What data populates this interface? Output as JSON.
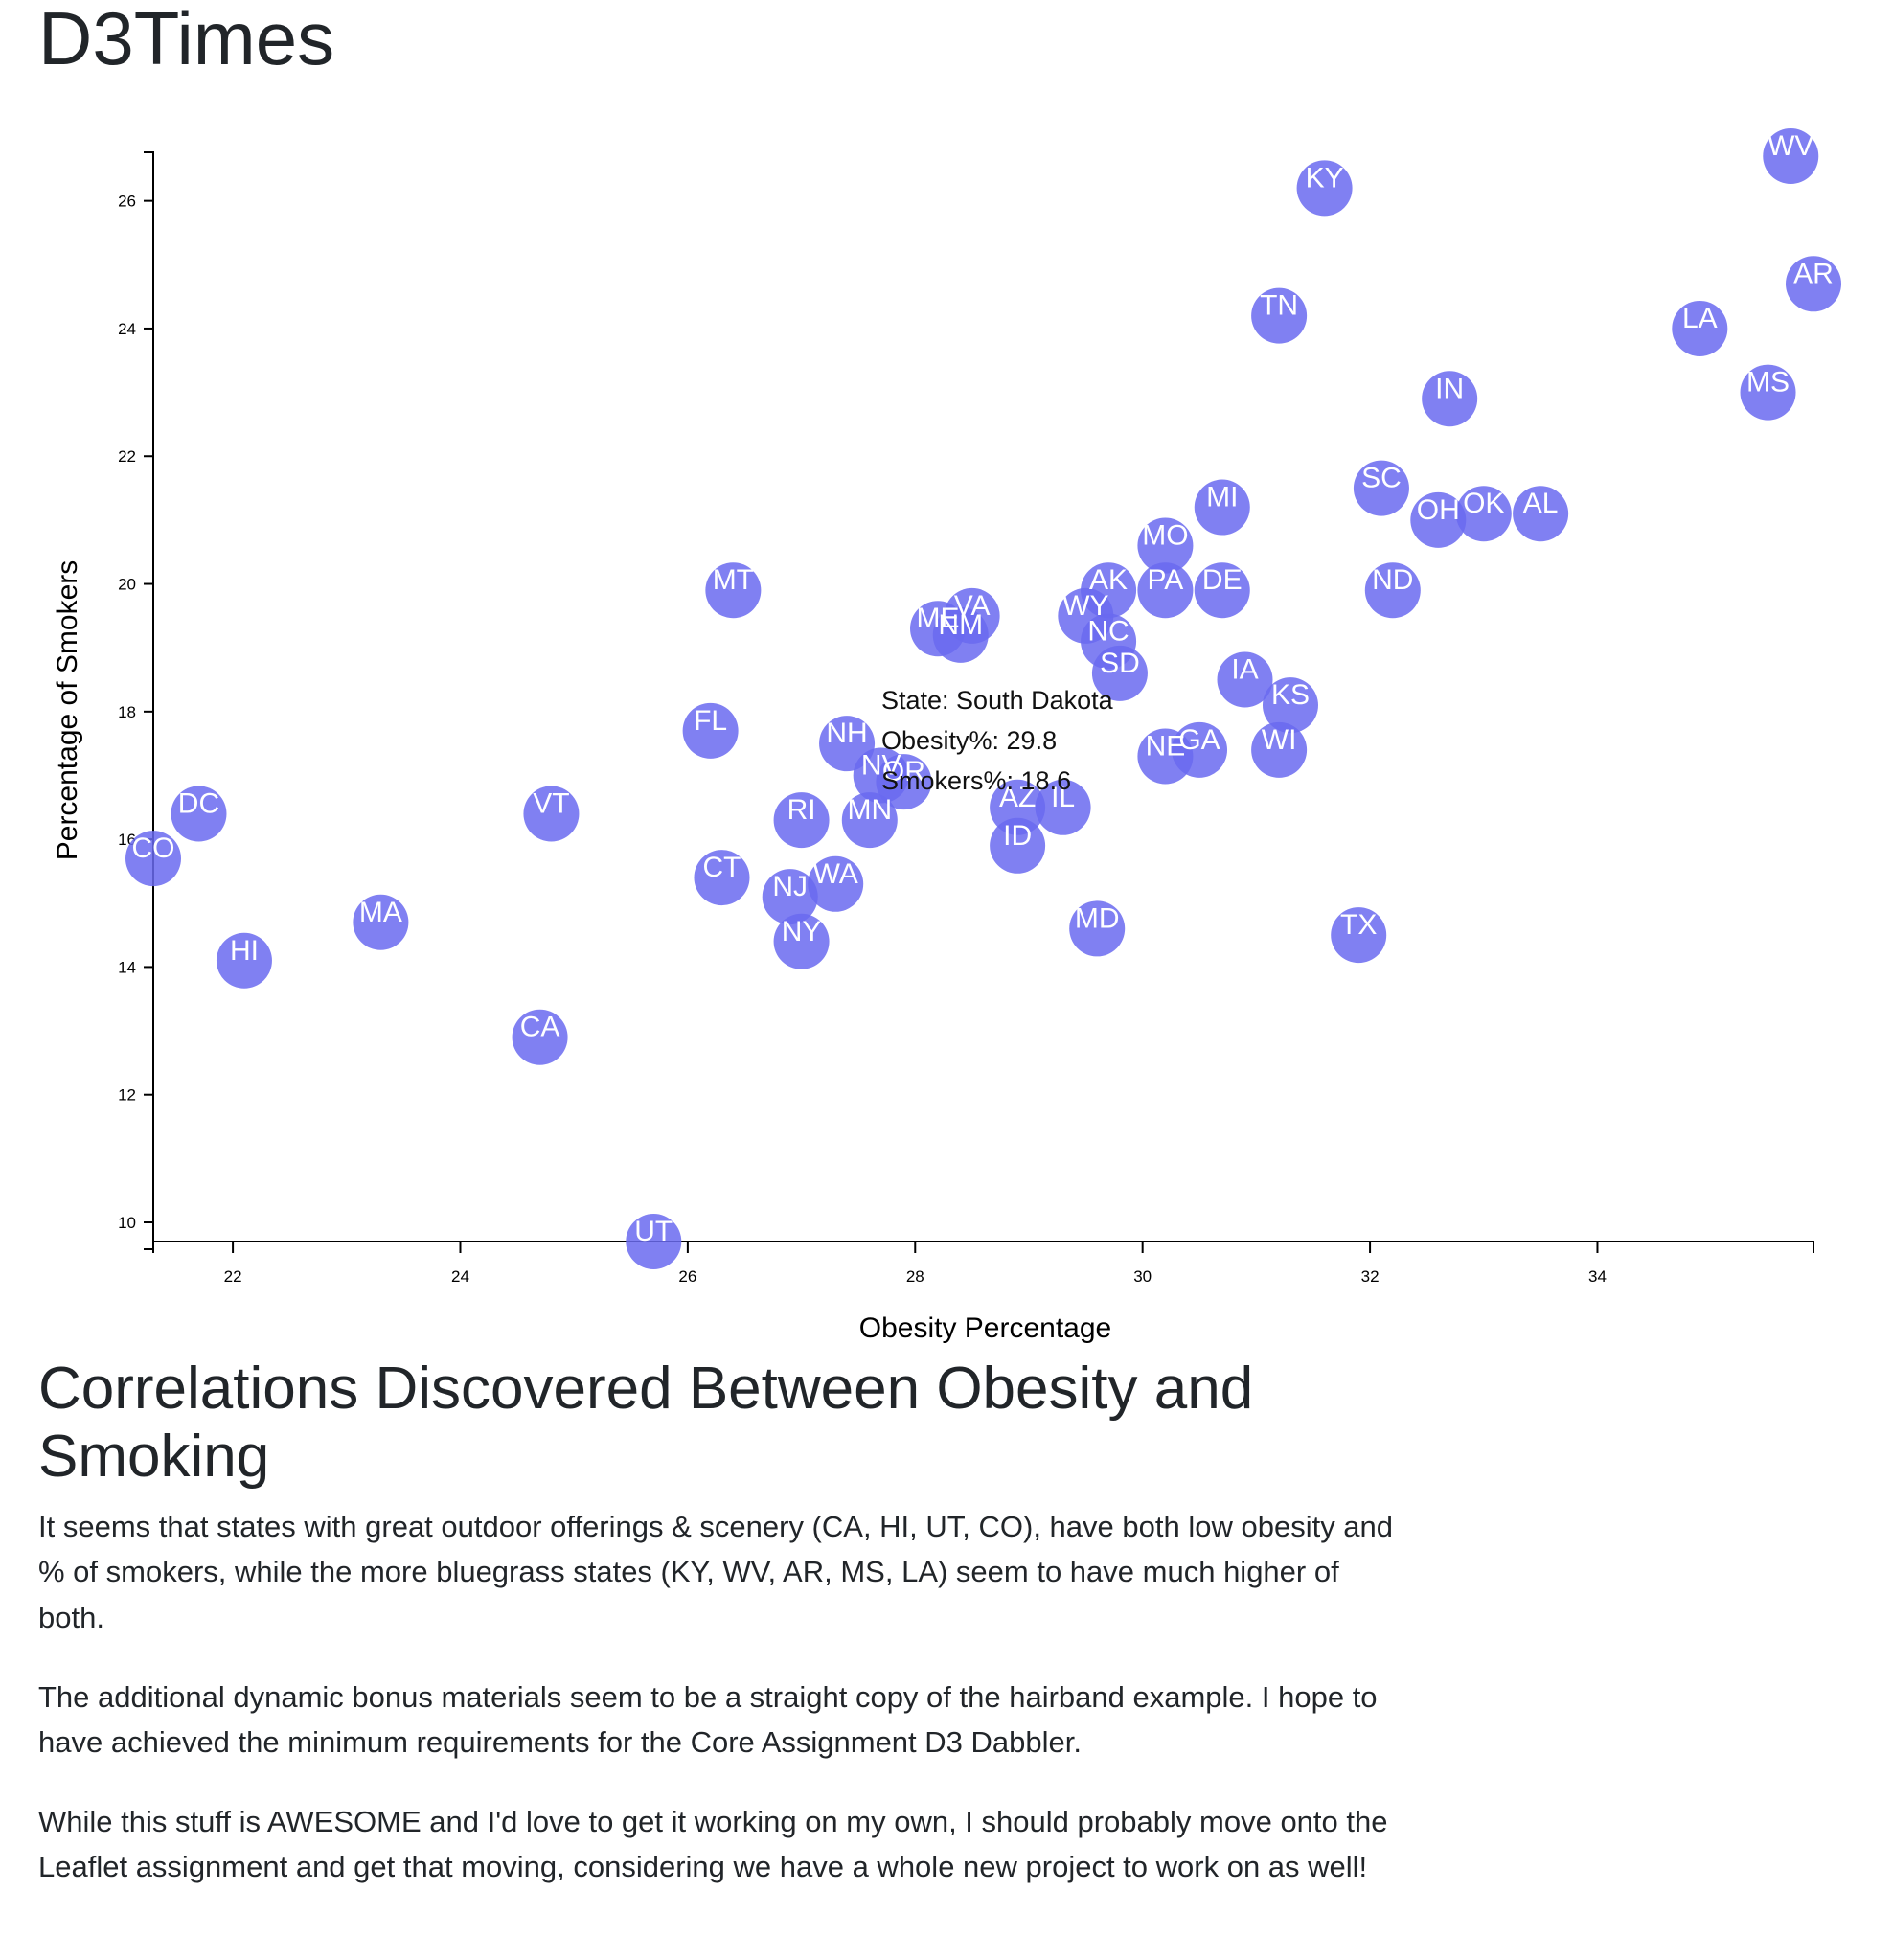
{
  "page": {
    "title": "D3Times"
  },
  "analysis": {
    "heading": "Correlations Discovered Between Obesity and Smoking",
    "paragraphs": [
      "It seems that states with great outdoor offerings & scenery (CA, HI, UT, CO), have both low obesity and % of smokers, while the more bluegrass states (KY, WV, AR, MS, LA) seem to have much higher of both.",
      "The additional dynamic bonus materials seem to be a straight copy of the hairband example. I hope to have achieved the minimum requirements for the Core Assignment D3 Dabbler.",
      "While this stuff is AWESOME and I'd love to get it working on my own, I should probably move onto the Leaflet assignment and get that moving, considering we have a whole new project to work on as well!"
    ]
  },
  "chart_data": {
    "type": "scatter",
    "xlabel": "Obesity Percentage",
    "ylabel": "Percentage of Smokers",
    "xlim": [
      21.3,
      35.9
    ],
    "ylim": [
      9.7,
      26.7
    ],
    "x_ticks": [
      22,
      24,
      26,
      28,
      30,
      32,
      34
    ],
    "y_ticks": [
      10,
      12,
      14,
      16,
      18,
      20,
      22,
      24,
      26
    ],
    "marker_color": "#6a6af0",
    "points": [
      {
        "label": "WV",
        "x": 35.7,
        "y": 26.7
      },
      {
        "label": "KY",
        "x": 31.6,
        "y": 26.2
      },
      {
        "label": "AR",
        "x": 35.9,
        "y": 24.7
      },
      {
        "label": "TN",
        "x": 31.2,
        "y": 24.2
      },
      {
        "label": "LA",
        "x": 34.9,
        "y": 24.0
      },
      {
        "label": "MS",
        "x": 35.5,
        "y": 23.0
      },
      {
        "label": "IN",
        "x": 32.7,
        "y": 22.9
      },
      {
        "label": "SC",
        "x": 32.1,
        "y": 21.5
      },
      {
        "label": "MI",
        "x": 30.7,
        "y": 21.2
      },
      {
        "label": "OH",
        "x": 32.6,
        "y": 21.0
      },
      {
        "label": "OK",
        "x": 33.0,
        "y": 21.1
      },
      {
        "label": "AL",
        "x": 33.5,
        "y": 21.1
      },
      {
        "label": "MO",
        "x": 30.2,
        "y": 20.6
      },
      {
        "label": "AK",
        "x": 29.7,
        "y": 19.9
      },
      {
        "label": "PA",
        "x": 30.2,
        "y": 19.9
      },
      {
        "label": "DE",
        "x": 30.7,
        "y": 19.9
      },
      {
        "label": "ND",
        "x": 32.2,
        "y": 19.9
      },
      {
        "label": "MT",
        "x": 26.4,
        "y": 19.9
      },
      {
        "label": "WY",
        "x": 29.5,
        "y": 19.5
      },
      {
        "label": "VA",
        "x": 28.5,
        "y": 19.5
      },
      {
        "label": "ME",
        "x": 28.2,
        "y": 19.3
      },
      {
        "label": "NM",
        "x": 28.4,
        "y": 19.2
      },
      {
        "label": "NC",
        "x": 29.7,
        "y": 19.1
      },
      {
        "label": "SD",
        "x": 29.8,
        "y": 18.6
      },
      {
        "label": "IA",
        "x": 30.9,
        "y": 18.5
      },
      {
        "label": "KS",
        "x": 31.3,
        "y": 18.1
      },
      {
        "label": "FL",
        "x": 26.2,
        "y": 17.7
      },
      {
        "label": "NH",
        "x": 27.4,
        "y": 17.5
      },
      {
        "label": "GA",
        "x": 30.5,
        "y": 17.4
      },
      {
        "label": "NE",
        "x": 30.2,
        "y": 17.3
      },
      {
        "label": "WI",
        "x": 31.2,
        "y": 17.4
      },
      {
        "label": "NV",
        "x": 27.7,
        "y": 17.0
      },
      {
        "label": "OR",
        "x": 27.9,
        "y": 16.9
      },
      {
        "label": "AZ",
        "x": 28.9,
        "y": 16.5
      },
      {
        "label": "IL",
        "x": 29.3,
        "y": 16.5
      },
      {
        "label": "DC",
        "x": 21.7,
        "y": 16.4
      },
      {
        "label": "VT",
        "x": 24.8,
        "y": 16.4
      },
      {
        "label": "RI",
        "x": 27.0,
        "y": 16.3
      },
      {
        "label": "MN",
        "x": 27.6,
        "y": 16.3
      },
      {
        "label": "ID",
        "x": 28.9,
        "y": 15.9
      },
      {
        "label": "CO",
        "x": 21.3,
        "y": 15.7
      },
      {
        "label": "CT",
        "x": 26.3,
        "y": 15.4
      },
      {
        "label": "WA",
        "x": 27.3,
        "y": 15.3
      },
      {
        "label": "NJ",
        "x": 26.9,
        "y": 15.1
      },
      {
        "label": "MA",
        "x": 23.3,
        "y": 14.7
      },
      {
        "label": "MD",
        "x": 29.6,
        "y": 14.6
      },
      {
        "label": "TX",
        "x": 31.9,
        "y": 14.5
      },
      {
        "label": "NY",
        "x": 27.0,
        "y": 14.4
      },
      {
        "label": "HI",
        "x": 22.1,
        "y": 14.1
      },
      {
        "label": "CA",
        "x": 24.7,
        "y": 12.9
      },
      {
        "label": "UT",
        "x": 25.7,
        "y": 9.7
      }
    ],
    "tooltip": {
      "lines": [
        "State: South Dakota",
        "Obesity%: 29.8",
        "Smokers%: 18.6"
      ]
    }
  }
}
